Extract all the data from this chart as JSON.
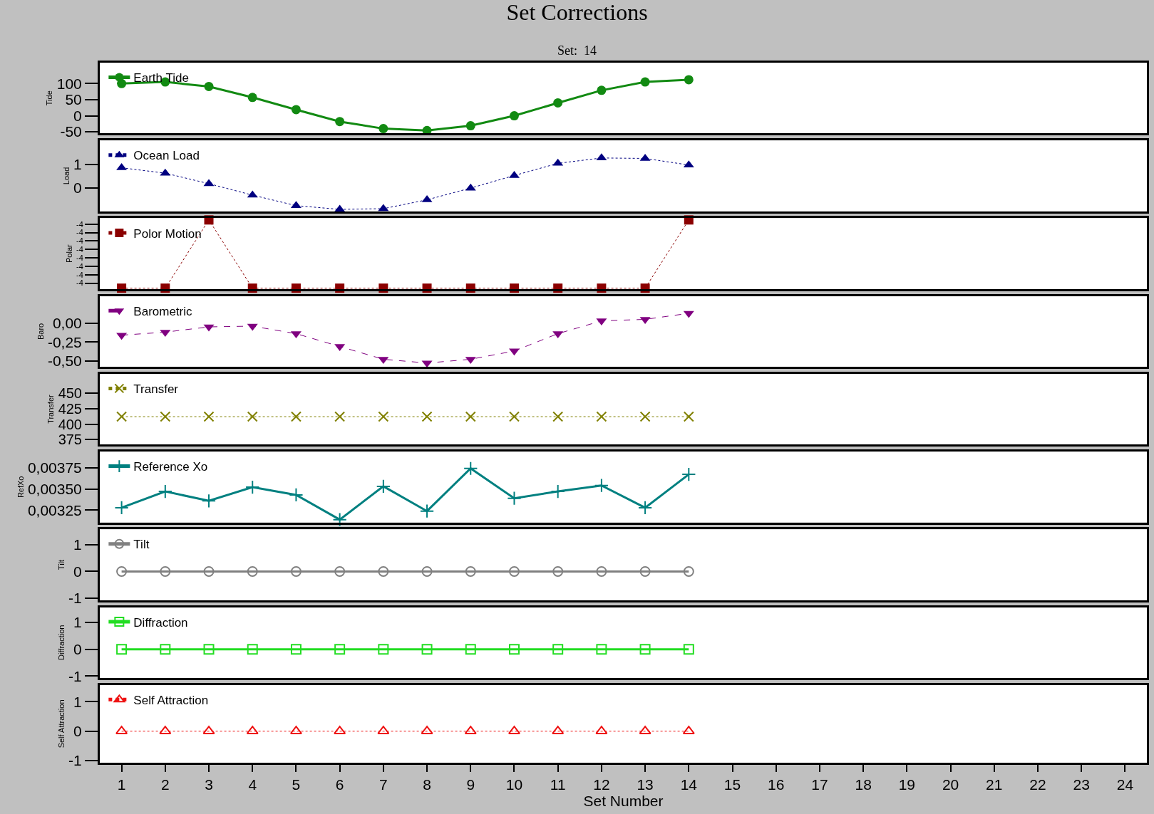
{
  "chart_data": [
    {
      "type": "line",
      "title": "Set Corrections",
      "subtitle": "Set:  14",
      "ylabel": "Tide",
      "legend": "top left",
      "tick_labels": "y",
      "x": [
        1,
        2,
        3,
        4,
        5,
        6,
        7,
        8,
        9,
        10,
        11,
        12,
        13,
        14
      ],
      "xlim": [
        0.5,
        24.5
      ],
      "xticks": [
        1,
        2,
        3,
        4,
        5,
        6,
        7,
        8,
        9,
        10,
        11,
        12,
        13,
        14,
        15,
        16,
        17,
        18,
        19,
        20,
        21,
        22,
        23,
        24
      ],
      "ylim": [
        -55,
        165
      ],
      "yticks": [
        -50,
        0,
        50,
        100
      ],
      "series": [
        {
          "name": "Earth Tide",
          "color": "#128a12",
          "marker": "circle",
          "line_style": "solid",
          "values": [
            100,
            105,
            91,
            57,
            19,
            -18,
            -40,
            -46,
            -31,
            0,
            40,
            79,
            105,
            112
          ]
        }
      ]
    },
    {
      "type": "line",
      "ylabel": "Load",
      "legend": "top left",
      "tick_labels": "y",
      "x": [
        1,
        2,
        3,
        4,
        5,
        6,
        7,
        8,
        9,
        10,
        11,
        12,
        13,
        14
      ],
      "xlim": [
        0.5,
        24.5
      ],
      "xticks": [
        1,
        2,
        3,
        4,
        5,
        6,
        7,
        8,
        9,
        10,
        11,
        12,
        13,
        14,
        15,
        16,
        17,
        18,
        19,
        20,
        21,
        22,
        23,
        24
      ],
      "ylim": [
        -1,
        2.03
      ],
      "yticks": [
        0,
        1
      ],
      "series": [
        {
          "name": "Ocean Load",
          "color": "#000080",
          "marker": "triangle-up",
          "line_style": "dotted",
          "values": [
            0.86,
            0.63,
            0.18,
            -0.31,
            -0.76,
            -0.92,
            -0.89,
            -0.51,
            -0.01,
            0.53,
            1.05,
            1.28,
            1.26,
            0.98
          ]
        }
      ]
    },
    {
      "type": "line",
      "ylabel": "Polar",
      "legend": "top left",
      "tick_labels": "y",
      "x": [
        1,
        2,
        3,
        4,
        5,
        6,
        7,
        8,
        9,
        10,
        11,
        12,
        13,
        14
      ],
      "xlim": [
        0.5,
        24.5
      ],
      "xticks": [
        1,
        2,
        3,
        4,
        5,
        6,
        7,
        8,
        9,
        10,
        11,
        12,
        13,
        14,
        15,
        16,
        17,
        18,
        19,
        20,
        21,
        22,
        23,
        24
      ],
      "ylim": [
        -4.042,
        -3.958
      ],
      "yticks": [
        {
          "value": -4.035,
          "label": "-4"
        },
        {
          "value": -4.025,
          "label": "-4"
        },
        {
          "value": -4.015,
          "label": "-4"
        },
        {
          "value": -4.005,
          "label": "-4"
        },
        {
          "value": -3.995,
          "label": "-4"
        },
        {
          "value": -3.985,
          "label": "-4"
        },
        {
          "value": -3.975,
          "label": "-4"
        },
        {
          "value": -3.965,
          "label": "-4"
        }
      ],
      "series": [
        {
          "name": "Polor Motion",
          "color": "#8b0000",
          "marker": "square",
          "line_style": "dotted",
          "values": [
            -4.041,
            -4.041,
            -3.96,
            -4.041,
            -4.041,
            -4.041,
            -4.041,
            -4.041,
            -4.041,
            -4.041,
            -4.041,
            -4.041,
            -4.041,
            -3.96
          ]
        }
      ]
    },
    {
      "type": "line",
      "ylabel": "Baro",
      "legend": "top left",
      "tick_labels": "y",
      "x": [
        1,
        2,
        3,
        4,
        5,
        6,
        7,
        8,
        9,
        10,
        11,
        12,
        13,
        14
      ],
      "xlim": [
        0.5,
        24.5
      ],
      "xticks": [
        1,
        2,
        3,
        4,
        5,
        6,
        7,
        8,
        9,
        10,
        11,
        12,
        13,
        14,
        15,
        16,
        17,
        18,
        19,
        20,
        21,
        22,
        23,
        24
      ],
      "ylim": [
        -0.58,
        0.36
      ],
      "yticks": [
        {
          "value": -0.5,
          "label": "-0,50"
        },
        {
          "value": -0.25,
          "label": "-0,25"
        },
        {
          "value": 0,
          "label": "0,00"
        }
      ],
      "series": [
        {
          "name": "Barometric",
          "color": "#800080",
          "marker": "triangle-down",
          "line_style": "dashed",
          "values": [
            -0.16,
            -0.12,
            -0.05,
            -0.04,
            -0.14,
            -0.31,
            -0.48,
            -0.53,
            -0.48,
            -0.37,
            -0.14,
            0.03,
            0.05,
            0.13
          ]
        }
      ]
    },
    {
      "type": "line",
      "ylabel": "Transfer",
      "legend": "top left",
      "tick_labels": "y",
      "x": [
        1,
        2,
        3,
        4,
        5,
        6,
        7,
        8,
        9,
        10,
        11,
        12,
        13,
        14
      ],
      "xlim": [
        0.5,
        24.5
      ],
      "xticks": [
        1,
        2,
        3,
        4,
        5,
        6,
        7,
        8,
        9,
        10,
        11,
        12,
        13,
        14,
        15,
        16,
        17,
        18,
        19,
        20,
        21,
        22,
        23,
        24
      ],
      "ylim": [
        367,
        481
      ],
      "yticks": [
        375,
        400,
        425,
        450
      ],
      "series": [
        {
          "name": "Transfer",
          "color": "#808000",
          "marker": "cross",
          "line_style": "dotted",
          "values": [
            412,
            412,
            412,
            412,
            412,
            412,
            412,
            412,
            412,
            412,
            412,
            412,
            412,
            412
          ]
        }
      ]
    },
    {
      "type": "line",
      "ylabel": "RefXo",
      "legend": "top left",
      "tick_labels": "y",
      "x": [
        1,
        2,
        3,
        4,
        5,
        6,
        7,
        8,
        9,
        10,
        11,
        12,
        13,
        14
      ],
      "xlim": [
        0.5,
        24.5
      ],
      "xticks": [
        1,
        2,
        3,
        4,
        5,
        6,
        7,
        8,
        9,
        10,
        11,
        12,
        13,
        14,
        15,
        16,
        17,
        18,
        19,
        20,
        21,
        22,
        23,
        24
      ],
      "ylim": [
        0.003108,
        0.003937
      ],
      "yticks": [
        {
          "value": 0.00325,
          "label": "0,00325"
        },
        {
          "value": 0.0035,
          "label": "0,00350"
        },
        {
          "value": 0.00375,
          "label": "0,00375"
        }
      ],
      "series": [
        {
          "name": "Reference Xo",
          "color": "#008080",
          "marker": "cross-thin",
          "line_style": "solid",
          "values": [
            0.00328,
            0.00347,
            0.00336,
            0.00352,
            0.00343,
            0.00314,
            0.00353,
            0.00324,
            0.00374,
            0.00339,
            0.00347,
            0.00354,
            0.00328,
            0.00367
          ]
        }
      ]
    },
    {
      "type": "line",
      "ylabel": "Tilt",
      "legend": "top left",
      "tick_labels": "y",
      "x": [
        1,
        2,
        3,
        4,
        5,
        6,
        7,
        8,
        9,
        10,
        11,
        12,
        13,
        14
      ],
      "xlim": [
        0.5,
        24.5
      ],
      "xticks": [
        1,
        2,
        3,
        4,
        5,
        6,
        7,
        8,
        9,
        10,
        11,
        12,
        13,
        14,
        15,
        16,
        17,
        18,
        19,
        20,
        21,
        22,
        23,
        24
      ],
      "ylim": [
        -1.07,
        1.57
      ],
      "yticks": [
        -1,
        0,
        1
      ],
      "series": [
        {
          "name": "Tilt",
          "color": "#808080",
          "marker": "circle-open",
          "line_style": "solid",
          "values": [
            0,
            0,
            0,
            0,
            0,
            0,
            0,
            0,
            0,
            0,
            0,
            0,
            0,
            0
          ]
        }
      ]
    },
    {
      "type": "line",
      "ylabel": "Diffraction",
      "legend": "top left",
      "tick_labels": "y",
      "x": [
        1,
        2,
        3,
        4,
        5,
        6,
        7,
        8,
        9,
        10,
        11,
        12,
        13,
        14
      ],
      "xlim": [
        0.5,
        24.5
      ],
      "xticks": [
        1,
        2,
        3,
        4,
        5,
        6,
        7,
        8,
        9,
        10,
        11,
        12,
        13,
        14,
        15,
        16,
        17,
        18,
        19,
        20,
        21,
        22,
        23,
        24
      ],
      "ylim": [
        -1.07,
        1.57
      ],
      "yticks": [
        -1,
        0,
        1
      ],
      "series": [
        {
          "name": "Diffraction",
          "color": "#22dd22",
          "marker": "square-open",
          "line_style": "solid",
          "values": [
            0,
            0,
            0,
            0,
            0,
            0,
            0,
            0,
            0,
            0,
            0,
            0,
            0,
            0
          ]
        }
      ]
    },
    {
      "type": "line",
      "ylabel": "Self Attraction",
      "xlabel": "Set Number",
      "legend": "top left",
      "x": [
        1,
        2,
        3,
        4,
        5,
        6,
        7,
        8,
        9,
        10,
        11,
        12,
        13,
        14
      ],
      "xlim": [
        0.5,
        24.5
      ],
      "xticks": [
        1,
        2,
        3,
        4,
        5,
        6,
        7,
        8,
        9,
        10,
        11,
        12,
        13,
        14,
        15,
        16,
        17,
        18,
        19,
        20,
        21,
        22,
        23,
        24
      ],
      "ylim": [
        -1.07,
        1.57
      ],
      "yticks": [
        -1,
        0,
        1
      ],
      "series": [
        {
          "name": "Self Attraction",
          "color": "#ee1111",
          "marker": "triangle-up-open",
          "line_style": "dotted",
          "values": [
            0,
            0,
            0,
            0,
            0,
            0,
            0,
            0,
            0,
            0,
            0,
            0,
            0,
            0
          ]
        }
      ]
    }
  ]
}
